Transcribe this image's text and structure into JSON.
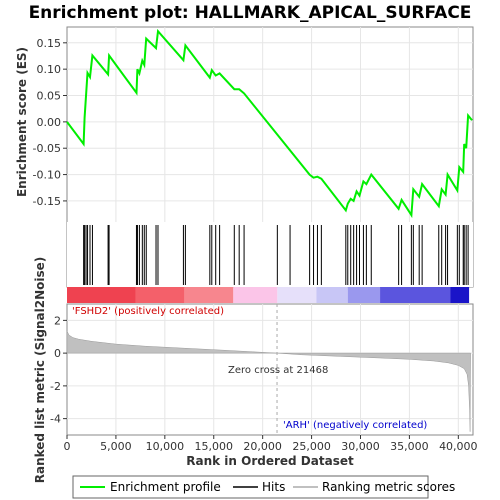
{
  "chart_data": [
    {
      "type": "line",
      "title": "Enrichment plot: HALLMARK_APICAL_SURFACE",
      "ylabel": "Enrichment score (ES)",
      "ylim": [
        -0.19,
        0.18
      ],
      "xlim": [
        0,
        41500
      ],
      "y_ticks": [
        0.15,
        0.1,
        0.05,
        0.0,
        -0.05,
        -0.1,
        -0.15
      ],
      "y_tick_labels": [
        "0.15",
        "0.10",
        "0.05",
        "0.00",
        "-0.05",
        "-0.10",
        "-0.15"
      ],
      "series": [
        {
          "name": "Enrichment profile",
          "color": "#00ee00",
          "points": [
            [
              0,
              0.0
            ],
            [
              1700,
              -0.042
            ],
            [
              1800,
              0.008
            ],
            [
              1950,
              0.052
            ],
            [
              2100,
              0.093
            ],
            [
              2350,
              0.085
            ],
            [
              2600,
              0.126
            ],
            [
              4200,
              0.09
            ],
            [
              4300,
              0.126
            ],
            [
              7100,
              0.055
            ],
            [
              7200,
              0.1
            ],
            [
              7400,
              0.092
            ],
            [
              7700,
              0.116
            ],
            [
              7900,
              0.108
            ],
            [
              8100,
              0.158
            ],
            [
              9100,
              0.14
            ],
            [
              9300,
              0.172
            ],
            [
              11900,
              0.117
            ],
            [
              12100,
              0.145
            ],
            [
              14600,
              0.084
            ],
            [
              14800,
              0.098
            ],
            [
              15200,
              0.088
            ],
            [
              15600,
              0.092
            ],
            [
              17100,
              0.062
            ],
            [
              17600,
              0.062
            ],
            [
              18100,
              0.054
            ],
            [
              24800,
              -0.1
            ],
            [
              25200,
              -0.106
            ],
            [
              25600,
              -0.104
            ],
            [
              26000,
              -0.108
            ],
            [
              28500,
              -0.168
            ],
            [
              28700,
              -0.155
            ],
            [
              29000,
              -0.146
            ],
            [
              29300,
              -0.15
            ],
            [
              29600,
              -0.132
            ],
            [
              29900,
              -0.14
            ],
            [
              30300,
              -0.113
            ],
            [
              30600,
              -0.118
            ],
            [
              31100,
              -0.1
            ],
            [
              33900,
              -0.165
            ],
            [
              34200,
              -0.148
            ],
            [
              35200,
              -0.177
            ],
            [
              35400,
              -0.128
            ],
            [
              36000,
              -0.142
            ],
            [
              36300,
              -0.118
            ],
            [
              38000,
              -0.16
            ],
            [
              38300,
              -0.128
            ],
            [
              38700,
              -0.138
            ],
            [
              38900,
              -0.1
            ],
            [
              39900,
              -0.13
            ],
            [
              40100,
              -0.086
            ],
            [
              40500,
              -0.095
            ],
            [
              40600,
              -0.042
            ],
            [
              40800,
              -0.05
            ],
            [
              41000,
              0.012
            ],
            [
              41400,
              0.003
            ]
          ]
        }
      ]
    },
    {
      "type": "hits",
      "legend_label": "Hits",
      "hits": [
        1700,
        1800,
        1950,
        2100,
        2350,
        2600,
        4200,
        4300,
        7100,
        7200,
        7400,
        7700,
        7900,
        8100,
        9100,
        9300,
        11900,
        12100,
        14600,
        14800,
        15200,
        15600,
        17100,
        17600,
        18100,
        21500,
        22800,
        24800,
        25200,
        25600,
        26000,
        28500,
        28700,
        29000,
        29300,
        29600,
        29900,
        30300,
        30600,
        31100,
        33900,
        34200,
        35200,
        35400,
        36000,
        36300,
        38000,
        38300,
        38700,
        38900,
        39900,
        40100,
        40500,
        40600,
        40800,
        41000
      ]
    },
    {
      "type": "area",
      "ylabel": "Ranked list metric (Signal2Noise)",
      "xlabel": "Rank in Ordered Dataset",
      "xlim": [
        0,
        41500
      ],
      "ylim": [
        -5,
        3
      ],
      "x_ticks": [
        0,
        5000,
        10000,
        15000,
        20000,
        25000,
        30000,
        35000,
        40000
      ],
      "x_tick_labels": [
        "0",
        "5,000",
        "10,000",
        "15,000",
        "20,000",
        "25,000",
        "30,000",
        "35,000",
        "40,000"
      ],
      "y_ticks": [
        2,
        0,
        -2,
        -4
      ],
      "y_tick_labels": [
        "2",
        "0",
        "-2",
        "-4"
      ],
      "series": [
        {
          "name": "Ranking metric scores",
          "color": "#c0c0c0",
          "points": [
            [
              0,
              1.35
            ],
            [
              200,
              1.1
            ],
            [
              600,
              0.95
            ],
            [
              1200,
              0.85
            ],
            [
              2500,
              0.72
            ],
            [
              5000,
              0.55
            ],
            [
              8000,
              0.42
            ],
            [
              12000,
              0.3
            ],
            [
              16000,
              0.18
            ],
            [
              19000,
              0.08
            ],
            [
              21468,
              0.0
            ],
            [
              24000,
              -0.1
            ],
            [
              28000,
              -0.2
            ],
            [
              32000,
              -0.3
            ],
            [
              35000,
              -0.38
            ],
            [
              37500,
              -0.48
            ],
            [
              39000,
              -0.6
            ],
            [
              40000,
              -0.75
            ],
            [
              40600,
              -0.95
            ],
            [
              40900,
              -1.3
            ],
            [
              41050,
              -2.0
            ],
            [
              41150,
              -3.5
            ],
            [
              41200,
              -4.8
            ],
            [
              41250,
              0.0
            ]
          ]
        }
      ],
      "annotations": {
        "positive": "'FSHD2' (positively correlated)",
        "negative": "'ARH' (negatively correlated)",
        "zero_cross": "Zero cross at 21468"
      },
      "zero_cross": 21468
    }
  ],
  "legend": {
    "items": [
      {
        "label": "Enrichment profile",
        "color": "#00ee00"
      },
      {
        "label": "Hits",
        "color": "#000000"
      },
      {
        "label": "Ranking metric scores",
        "color": "#c0c0c0"
      }
    ]
  }
}
